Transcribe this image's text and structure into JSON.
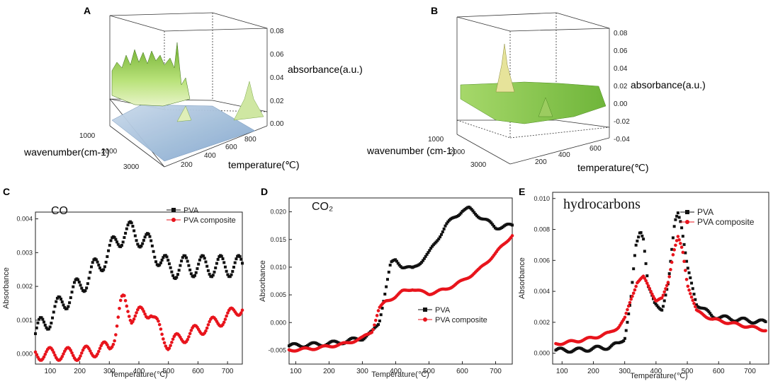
{
  "colors": {
    "pva": "#111111",
    "composite": "#e8141c",
    "green": "#8fd24a",
    "blue": "#9ab8d8"
  },
  "panelA": {
    "label": "A",
    "zlabel": "absorbance(a.u.)",
    "xlabel": "wavenumber(cm-1)",
    "ylabel": "temperature(℃)",
    "zticks": [
      "0.08",
      "0.06",
      "0.04",
      "0.02",
      "0.00"
    ],
    "xticks": [
      "1000",
      "2000",
      "3000"
    ],
    "yticks": [
      "200",
      "400",
      "600",
      "800"
    ]
  },
  "panelB": {
    "label": "B",
    "zlabel": "absorbance(a.u.)",
    "xlabel": "wavenumber (cm-1)",
    "ylabel": "temperature(℃)",
    "zticks": [
      "0.08",
      "0.06",
      "0.04",
      "0.02",
      "0.00",
      "-0.02",
      "-0.04"
    ],
    "xticks": [
      "1000",
      "2000",
      "3000"
    ],
    "yticks": [
      "200",
      "400",
      "600"
    ]
  },
  "chart_data": [
    {
      "panel": "C",
      "type": "scatter",
      "title": "CO",
      "xlabel": "Temperature(℃)",
      "ylabel": "Absorbance",
      "xlim": [
        50,
        750
      ],
      "ylim": [
        -0.0003,
        0.0042
      ],
      "xticks": [
        "100",
        "200",
        "300",
        "400",
        "500",
        "600",
        "700"
      ],
      "yticks": [
        "0.000",
        "0.001",
        "0.002",
        "0.003",
        "0.004"
      ],
      "legend": [
        "PVA",
        "PVA composite"
      ],
      "series": [
        {
          "name": "PVA",
          "x": [
            50,
            100,
            150,
            200,
            250,
            300,
            330,
            350,
            375,
            400,
            425,
            450,
            475,
            500,
            550,
            600,
            650,
            700,
            750
          ],
          "y": [
            0.0006,
            0.0011,
            0.0016,
            0.002,
            0.0025,
            0.003,
            0.0034,
            0.0036,
            0.0036,
            0.0035,
            0.0033,
            0.0031,
            0.0028,
            0.0025,
            0.0026,
            0.0026,
            0.0026,
            0.0026,
            0.0026
          ]
        },
        {
          "name": "PVA composite",
          "x": [
            50,
            100,
            150,
            200,
            250,
            300,
            320,
            340,
            350,
            360,
            375,
            400,
            425,
            440,
            460,
            480,
            500,
            550,
            600,
            650,
            700,
            750
          ],
          "y": [
            0.0,
            0.0,
            0.0,
            0.0,
            0.0001,
            0.0002,
            0.0006,
            0.0015,
            0.0016,
            0.0014,
            0.0011,
            0.0012,
            0.0012,
            0.0013,
            0.0009,
            0.0005,
            0.0003,
            0.0005,
            0.0007,
            0.0009,
            0.0011,
            0.0014
          ]
        }
      ]
    },
    {
      "panel": "D",
      "type": "scatter",
      "title": "CO₂",
      "xlabel": "Temperature(℃)",
      "ylabel": "Absorbance",
      "xlim": [
        80,
        750
      ],
      "ylim": [
        -0.0075,
        0.0225
      ],
      "xticks": [
        "100",
        "200",
        "300",
        "400",
        "500",
        "600",
        "700"
      ],
      "yticks": [
        "-0.005",
        "0.000",
        "0.005",
        "0.010",
        "0.015",
        "0.020"
      ],
      "legend": [
        "PVA",
        "PVA composite"
      ],
      "series": [
        {
          "name": "PVA",
          "x": [
            80,
            150,
            200,
            250,
            300,
            330,
            350,
            370,
            385,
            400,
            420,
            450,
            500,
            550,
            600,
            620,
            650,
            700,
            750
          ],
          "y": [
            -0.0042,
            -0.004,
            -0.0038,
            -0.0034,
            -0.0028,
            -0.0018,
            0.0,
            0.006,
            0.0105,
            0.0113,
            0.0102,
            0.0096,
            0.0125,
            0.0175,
            0.0203,
            0.0205,
            0.0193,
            0.0172,
            0.0175
          ]
        },
        {
          "name": "PVA composite",
          "x": [
            80,
            150,
            200,
            250,
            300,
            330,
            350,
            370,
            400,
            420,
            450,
            480,
            500,
            550,
            600,
            650,
            700,
            750
          ],
          "y": [
            -0.005,
            -0.0047,
            -0.0043,
            -0.0038,
            -0.0028,
            -0.0015,
            0.0025,
            0.0038,
            0.0047,
            0.0056,
            0.0061,
            0.0055,
            0.0052,
            0.006,
            0.0075,
            0.0095,
            0.0125,
            0.0158
          ]
        }
      ]
    },
    {
      "panel": "E",
      "type": "scatter",
      "title": "hydrocarbons",
      "xlabel": "Temperature(℃)",
      "ylabel": "Absorbance",
      "xlim": [
        70,
        760
      ],
      "ylim": [
        -0.0007,
        0.0104
      ],
      "xticks": [
        "100",
        "200",
        "300",
        "400",
        "500",
        "600",
        "700"
      ],
      "yticks": [
        "0.000",
        "0.002",
        "0.004",
        "0.006",
        "0.008",
        "0.010"
      ],
      "legend": [
        "PVA",
        "PVA composite"
      ],
      "series": [
        {
          "name": "PVA",
          "x": [
            80,
            150,
            200,
            250,
            280,
            300,
            320,
            335,
            350,
            360,
            375,
            395,
            420,
            440,
            460,
            470,
            480,
            500,
            530,
            580,
            650,
            700,
            750
          ],
          "y": [
            0.0002,
            0.0002,
            0.0003,
            0.0004,
            0.0006,
            0.001,
            0.0035,
            0.0068,
            0.008,
            0.0075,
            0.0043,
            0.0032,
            0.0029,
            0.0045,
            0.0085,
            0.0092,
            0.0085,
            0.0055,
            0.0032,
            0.0024,
            0.0022,
            0.0021,
            0.002
          ]
        },
        {
          "name": "PVA composite",
          "x": [
            80,
            150,
            200,
            250,
            280,
            300,
            320,
            340,
            360,
            380,
            400,
            420,
            440,
            455,
            470,
            485,
            500,
            530,
            580,
            650,
            700,
            750
          ],
          "y": [
            0.0006,
            0.0008,
            0.001,
            0.0013,
            0.0017,
            0.0022,
            0.0035,
            0.0046,
            0.0049,
            0.0042,
            0.0034,
            0.0035,
            0.0047,
            0.0065,
            0.0075,
            0.0066,
            0.0045,
            0.0027,
            0.0022,
            0.0019,
            0.0017,
            0.0015
          ]
        }
      ]
    }
  ]
}
